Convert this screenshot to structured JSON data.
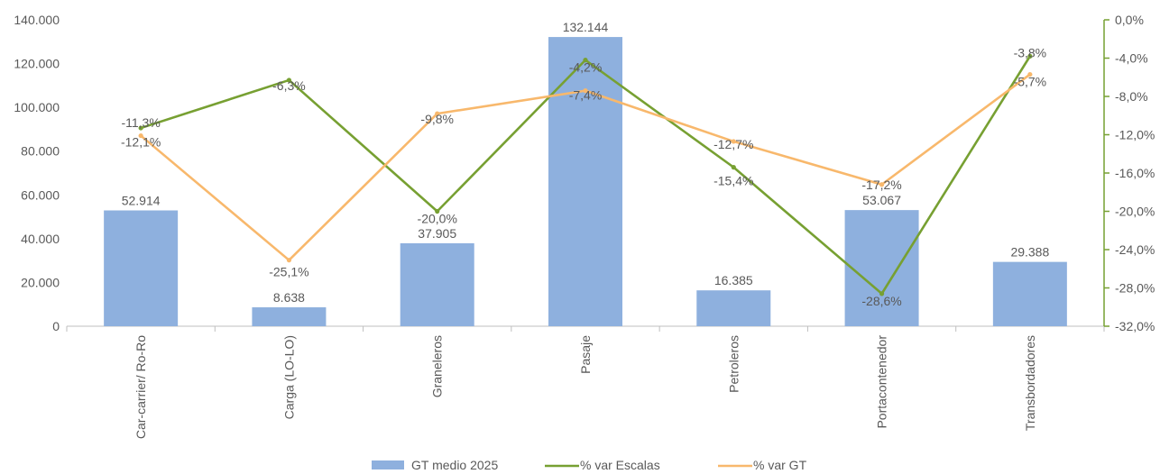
{
  "chart_data": {
    "type": "bar",
    "categories": [
      "Car-carrier/ Ro-Ro",
      "Carga (LO-LO)",
      "Graneleros",
      "Pasaje",
      "Petroleros",
      "Portacontenedor",
      "Transbordadores"
    ],
    "series": [
      {
        "name": "GT medio 2025",
        "type": "bar",
        "axis": "left",
        "values": [
          52914,
          8638,
          37905,
          132144,
          16385,
          53067,
          29388
        ],
        "labels": [
          "52.914",
          "8.638",
          "37.905",
          "132.144",
          "16.385",
          "53.067",
          "29.388"
        ],
        "color": "#8eb0de"
      },
      {
        "name": "% var Escalas",
        "type": "line",
        "axis": "right",
        "values": [
          -11.3,
          -6.3,
          -20.0,
          -4.2,
          -15.4,
          -28.6,
          -3.8
        ],
        "labels": [
          "-11,3%",
          "-6,3%",
          "-20,0%",
          "-4,2%",
          "-15,4%",
          "-28,6%",
          "-3,8%"
        ],
        "color": "#77a032"
      },
      {
        "name": "% var GT",
        "type": "line",
        "axis": "right",
        "values": [
          -12.1,
          -25.1,
          -9.8,
          -7.4,
          -12.7,
          -17.2,
          -5.7
        ],
        "labels": [
          "-12,1%",
          "-25,1%",
          "-9,8%",
          "-7,4%",
          "-12,7%",
          "-17,2%",
          "-5,7%"
        ],
        "color": "#f8b86c"
      }
    ],
    "y_left": {
      "ylim": [
        0,
        140000
      ],
      "ticks": [
        0,
        20000,
        40000,
        60000,
        80000,
        100000,
        120000,
        140000
      ],
      "tick_labels": [
        "0",
        "20.000",
        "40.000",
        "60.000",
        "80.000",
        "100.000",
        "120.000",
        "140.000"
      ]
    },
    "y_right": {
      "ylim": [
        -32,
        0
      ],
      "ticks": [
        0,
        -4,
        -8,
        -12,
        -16,
        -20,
        -24,
        -28,
        -32
      ],
      "tick_labels": [
        "0,0%",
        "-4,0%",
        "-8,0%",
        "-12,0%",
        "-16,0%",
        "-20,0%",
        "-24,0%",
        "-28,0%",
        "-32,0%"
      ]
    },
    "axis_color": "#77a032",
    "grid": false,
    "legend": "bottom"
  }
}
